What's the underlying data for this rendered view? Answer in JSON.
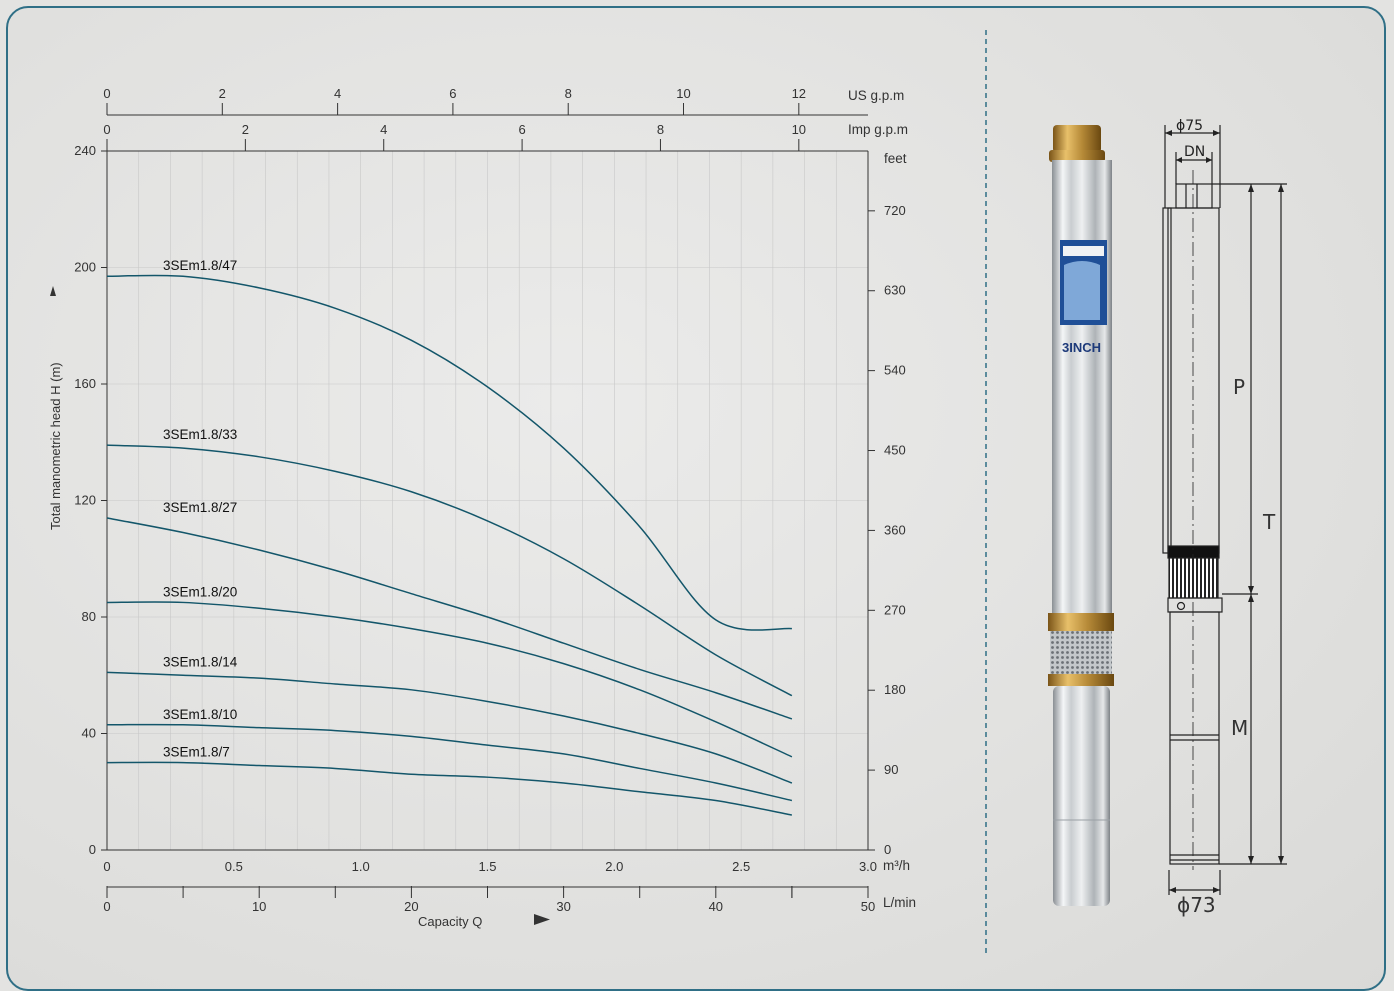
{
  "chart_data": {
    "type": "line",
    "ylabel": "Total manometric head H (m)",
    "xlabel": "Capacity Q",
    "ylim": [
      0,
      240
    ],
    "xlim": [
      0,
      3.0
    ],
    "grid": true,
    "x_unit": "m³/h",
    "y_ticks": [
      "0",
      "40",
      "80",
      "120",
      "160",
      "200",
      "240"
    ],
    "x_ticks": [
      "0",
      "0.5",
      "1.0",
      "1.5",
      "2.0",
      "2.5",
      "3.0"
    ],
    "secondary_axes": {
      "lmin": {
        "unit": "L/min",
        "ticks": [
          "0",
          "10",
          "20",
          "30",
          "40",
          "50"
        ],
        "max": 50
      },
      "imp": {
        "unit": "Imp g.p.m",
        "ticks": [
          "0",
          "2",
          "4",
          "6",
          "8",
          "10"
        ],
        "max": 11
      },
      "us": {
        "unit": "US g.p.m",
        "ticks": [
          "0",
          "2",
          "4",
          "6",
          "8",
          "10",
          "12"
        ],
        "max": 13.2
      },
      "feet": {
        "unit": "feet",
        "ticks": [
          "0",
          "90",
          "180",
          "270",
          "360",
          "450",
          "540",
          "630",
          "720"
        ],
        "max": 787.4
      }
    },
    "series": [
      {
        "name": "3SEm1.8/47",
        "x": [
          0,
          0.3,
          0.6,
          0.9,
          1.2,
          1.5,
          1.8,
          2.1,
          2.4,
          2.7
        ],
        "y": [
          197,
          197,
          193,
          186,
          175,
          159,
          138,
          111,
          79,
          76
        ]
      },
      {
        "name": "3SEm1.8/33",
        "x": [
          0,
          0.3,
          0.6,
          0.9,
          1.2,
          1.5,
          1.8,
          2.1,
          2.4,
          2.7
        ],
        "y": [
          139,
          138,
          135,
          130,
          123,
          113,
          100,
          84,
          67,
          53
        ]
      },
      {
        "name": "3SEm1.8/27",
        "x": [
          0,
          0.3,
          0.6,
          0.9,
          1.2,
          1.5,
          1.8,
          2.1,
          2.4,
          2.7
        ],
        "y": [
          114,
          109,
          103,
          96,
          88,
          80,
          71,
          62,
          54,
          45
        ]
      },
      {
        "name": "3SEm1.8/20",
        "x": [
          0,
          0.3,
          0.6,
          0.9,
          1.2,
          1.5,
          1.8,
          2.1,
          2.4,
          2.7
        ],
        "y": [
          85,
          85,
          83,
          80,
          76,
          71,
          64,
          55,
          44,
          32
        ]
      },
      {
        "name": "3SEm1.8/14",
        "x": [
          0,
          0.3,
          0.6,
          0.9,
          1.2,
          1.5,
          1.8,
          2.1,
          2.4,
          2.7
        ],
        "y": [
          61,
          60,
          59,
          57,
          55,
          51,
          46,
          40,
          33,
          23
        ]
      },
      {
        "name": "3SEm1.8/10",
        "x": [
          0,
          0.3,
          0.6,
          0.9,
          1.2,
          1.5,
          1.8,
          2.1,
          2.4,
          2.7
        ],
        "y": [
          43,
          43,
          42,
          41,
          39,
          36,
          33,
          28,
          23,
          17
        ]
      },
      {
        "name": "3SEm1.8/7",
        "x": [
          0,
          0.3,
          0.6,
          0.9,
          1.2,
          1.5,
          1.8,
          2.1,
          2.4,
          2.7
        ],
        "y": [
          30,
          30,
          29,
          28,
          26,
          25,
          23,
          20,
          17,
          12
        ]
      }
    ],
    "colors": {
      "curve": "#13566a",
      "grid": "#c8c8c8",
      "axis": "#333333"
    }
  },
  "product": {
    "badge_text": "3INCH",
    "dimensions": {
      "outer_diameter": "ϕ75",
      "outlet": "DN",
      "pump_length": "P",
      "total_length": "T",
      "motor_length": "M",
      "motor_diameter": "ϕ73"
    }
  }
}
